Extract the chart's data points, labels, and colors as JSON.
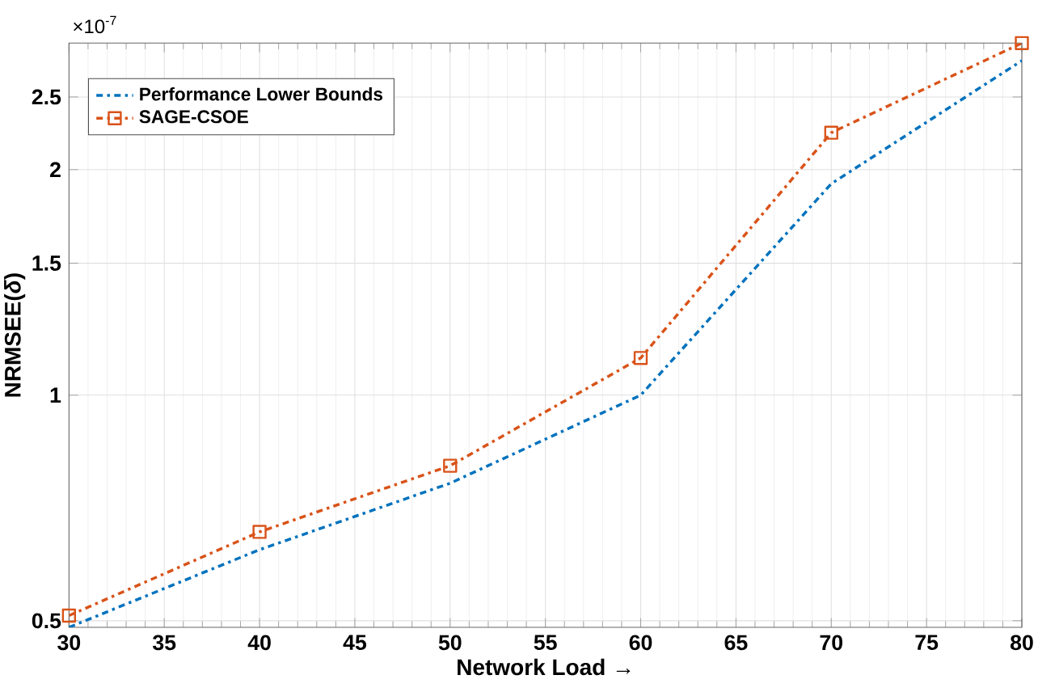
{
  "chart_data": {
    "type": "line",
    "xlabel": "Network Load →",
    "ylabel": "NRMSEE(*δ*)",
    "annotations": [
      "×10$^{-7}$"
    ],
    "x": [
      30,
      40,
      50,
      60,
      70,
      80
    ],
    "series": [
      {
        "name": "Performance Lower Bounds",
        "color": "#0072bd",
        "values": [
          0.49,
          0.622,
          0.763,
          1.0,
          1.915,
          2.795
        ],
        "marker": "none",
        "line_style": "dashed"
      },
      {
        "name": "SAGE-CSOE",
        "color": "#d95319",
        "values": [
          0.508,
          0.657,
          0.805,
          1.121,
          2.24,
          2.95
        ],
        "marker": "square",
        "line_style": "dashed"
      }
    ],
    "xlim": [
      30,
      80
    ],
    "xticks": [
      30,
      35,
      40,
      45,
      50,
      55,
      60,
      65,
      70,
      75,
      80
    ],
    "ylim": [
      0.49,
      2.95
    ],
    "yticks": [
      0.5,
      1,
      1.5,
      2,
      2.5
    ],
    "log": "y",
    "grid": true,
    "legend": "top left"
  }
}
